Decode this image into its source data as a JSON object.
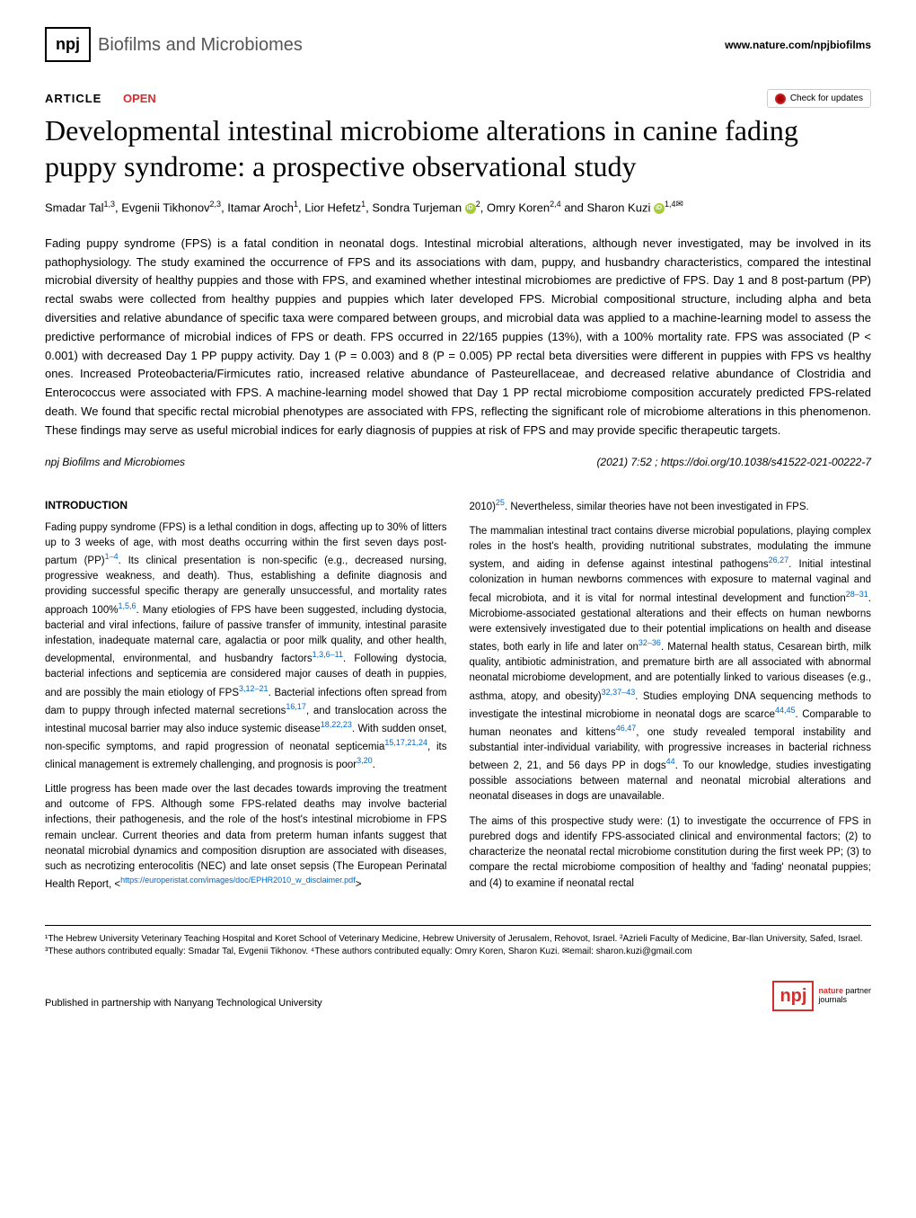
{
  "header": {
    "npj": "npj",
    "journal": "Biofilms and Microbiomes",
    "url": "www.nature.com/npjbiofilms"
  },
  "labels": {
    "article": "ARTICLE",
    "open": "OPEN",
    "check_updates": "Check for updates"
  },
  "title": "Developmental intestinal microbiome alterations in canine fading puppy syndrome: a prospective observational study",
  "authors": {
    "a1": "Smadar Tal",
    "s1": "1,3",
    "a2": "Evgenii Tikhonov",
    "s2": "2,3",
    "a3": "Itamar Aroch",
    "s3": "1",
    "a4": "Lior Hefetz",
    "s4": "1",
    "a5": "Sondra Turjeman",
    "s5": "2",
    "a6": "Omry Koren",
    "s6": "2,4",
    "a7": "Sharon Kuzi",
    "s7": "1,4",
    "and": " and "
  },
  "abstract": "Fading puppy syndrome (FPS) is a fatal condition in neonatal dogs. Intestinal microbial alterations, although never investigated, may be involved in its pathophysiology. The study examined the occurrence of FPS and its associations with dam, puppy, and husbandry characteristics, compared the intestinal microbial diversity of healthy puppies and those with FPS, and examined whether intestinal microbiomes are predictive of FPS. Day 1 and 8 post-partum (PP) rectal swabs were collected from healthy puppies and puppies which later developed FPS. Microbial compositional structure, including alpha and beta diversities and relative abundance of specific taxa were compared between groups, and microbial data was applied to a machine-learning model to assess the predictive performance of microbial indices of FPS or death. FPS occurred in 22/165 puppies (13%), with a 100% mortality rate. FPS was associated (P < 0.001) with decreased Day 1 PP puppy activity. Day 1 (P = 0.003) and 8 (P = 0.005) PP rectal beta diversities were different in puppies with FPS vs healthy ones. Increased Proteobacteria/Firmicutes ratio, increased relative abundance of Pasteurellaceae, and decreased relative abundance of Clostridia and Enterococcus were associated with FPS. A machine-learning model showed that Day 1 PP rectal microbiome composition accurately predicted FPS-related death. We found that specific rectal microbial phenotypes are associated with FPS, reflecting the significant role of microbiome alterations in this phenomenon. These findings may serve as useful microbial indices for early diagnosis of puppies at risk of FPS and may provide specific therapeutic targets.",
  "citation": {
    "journal": "npj Biofilms and Microbiomes",
    "info": "           (2021) 7:52 ; https://doi.org/10.1038/s41522-021-00222-7"
  },
  "intro_title": "INTRODUCTION",
  "col1": {
    "p1a": "Fading puppy syndrome (FPS) is a lethal condition in dogs, affecting up to 30% of litters up to 3 weeks of age, with most deaths occurring within the first seven days post-partum (PP)",
    "r1": "1–4",
    "p1b": ". Its clinical presentation is non-specific (e.g., decreased nursing, progressive weakness, and death). Thus, establishing a definite diagnosis and providing successful specific therapy are generally unsuccessful, and mortality rates approach 100%",
    "r2": "1,5,6",
    "p1c": ". Many etiologies of FPS have been suggested, including dystocia, bacterial and viral infections, failure of passive transfer of immunity, intestinal parasite infestation, inadequate maternal care, agalactia or poor milk quality, and other health, developmental, environmental, and husbandry factors",
    "r3": "1,3,6–11",
    "p1d": ". Following dystocia, bacterial infections and septicemia are considered major causes of death in puppies, and are possibly the main etiology of FPS",
    "r4": "3,12–21",
    "p1e": ". Bacterial infections often spread from dam to puppy through infected maternal secretions",
    "r5": "16,17",
    "p1f": ", and translocation across the intestinal mucosal barrier may also induce systemic disease",
    "r6": "18,22,23",
    "p1g": ". With sudden onset, non-specific symptoms, and rapid progression of neonatal septicemia",
    "r7": "15,17,21,24",
    "p1h": ", its clinical management is extremely challenging, and prognosis is poor",
    "r8": "3,20",
    "p1i": ".",
    "p2": "Little progress has been made over the last decades towards improving the treatment and outcome of FPS. Although some FPS-related deaths may involve bacterial infections, their pathogenesis, and the role of the host's intestinal microbiome in FPS remain unclear. Current theories and data from preterm human infants suggest that neonatal microbial dynamics and composition disruption are associated with diseases, such as necrotizing enterocolitis (NEC) and late onset sepsis (The European Perinatal Health Report, <",
    "link": "https://europeristat.com/images/doc/EPHR2010_w_disclaimer.pdf",
    "p2b": ">"
  },
  "col2": {
    "p1a": "2010)",
    "r1": "25",
    "p1b": ". Nevertheless, similar theories have not been investigated in FPS.",
    "p2a": "The mammalian intestinal tract contains diverse microbial populations, playing complex roles in the host's health, providing nutritional substrates, modulating the immune system, and aiding in defense against intestinal pathogens",
    "r2": "26,27",
    "p2b": ". Initial intestinal colonization in human newborns commences with exposure to maternal vaginal and fecal microbiota, and it is vital for normal intestinal development and function",
    "r3": "28–31",
    "p2c": ". Microbiome-associated gestational alterations and their effects on human newborns were extensively investigated due to their potential implications on health and disease states, both early in life and later on",
    "r4": "32–36",
    "p2d": ". Maternal health status, Cesarean birth, milk quality, antibiotic administration, and premature birth are all associated with abnormal neonatal microbiome development, and are potentially linked to various diseases (e.g., asthma, atopy, and obesity)",
    "r5": "32,37–43",
    "p2e": ". Studies employing DNA sequencing methods to investigate the intestinal microbiome in neonatal dogs are scarce",
    "r6": "44,45",
    "p2f": ". Comparable to human neonates and kittens",
    "r7": "46,47",
    "p2g": ", one study revealed temporal instability and substantial inter-individual variability, with progressive increases in bacterial richness between 2, 21, and 56 days PP in dogs",
    "r8": "44",
    "p2h": ". To our knowledge, studies investigating possible associations between maternal and neonatal microbial alterations and neonatal diseases in dogs are unavailable.",
    "p3": "The aims of this prospective study were: (1) to investigate the occurrence of FPS in purebred dogs and identify FPS-associated clinical and environmental factors; (2) to characterize the neonatal rectal microbiome constitution during the first week PP; (3) to compare the rectal microbiome composition of healthy and 'fading' neonatal puppies; and (4) to examine if neonatal rectal"
  },
  "affiliations": "¹The Hebrew University Veterinary Teaching Hospital and Koret School of Veterinary Medicine, Hebrew University of Jerusalem, Rehovot, Israel. ²Azrieli Faculty of Medicine, Bar-Ilan University, Safed, Israel. ³These authors contributed equally: Smadar Tal, Evgenii Tikhonov. ⁴These authors contributed equally: Omry Koren, Sharon Kuzi. ✉email: sharon.kuzi@gmail.com",
  "footer": {
    "publisher": "Published in partnership with Nanyang Technological University",
    "npj": "npj",
    "partner1": "nature",
    "partner2": "partner",
    "partner3": "journals"
  }
}
